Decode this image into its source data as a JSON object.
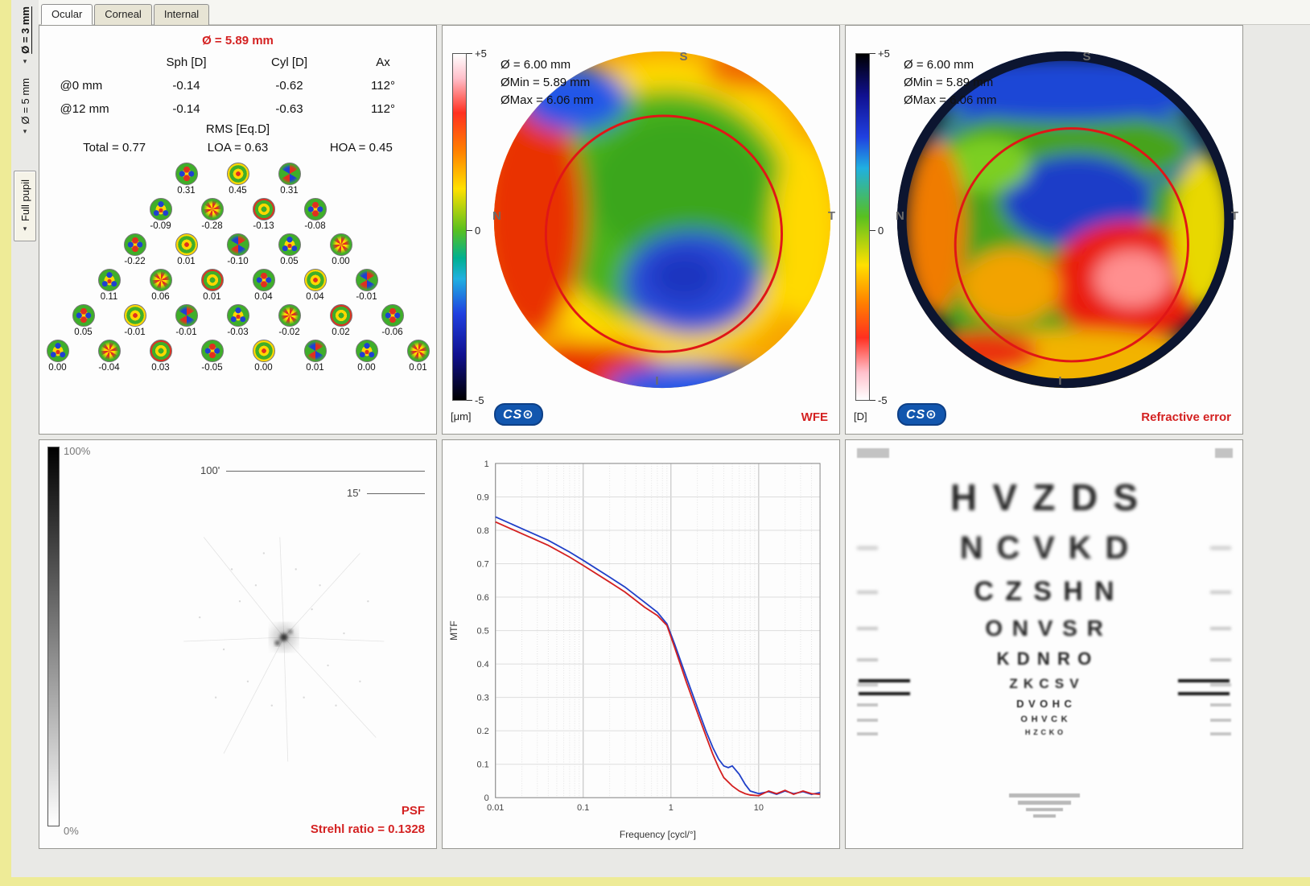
{
  "window": {
    "tabs": [
      {
        "label": "Ocular"
      },
      {
        "label": "Corneal"
      },
      {
        "label": "Internal"
      }
    ],
    "active_tab": "Ocular"
  },
  "sidebar": {
    "items": [
      {
        "label": "Ø = 3 mm",
        "active": true
      },
      {
        "label": "Ø = 5 mm",
        "active": false
      },
      {
        "label": "Full pupil",
        "active": false
      }
    ]
  },
  "icons": {
    "dropdown_arrow": "▾"
  },
  "zernike": {
    "title": "Ø = 5.89 mm",
    "col_headers": [
      "Sph [D]",
      "Cyl [D]",
      "Ax"
    ],
    "rows": [
      {
        "label": "@0 mm",
        "sph": "-0.14",
        "cyl": "-0.62",
        "ax": "112°"
      },
      {
        "label": "@12 mm",
        "sph": "-0.14",
        "cyl": "-0.63",
        "ax": "112°"
      }
    ],
    "rms_title": "RMS [Eq.D]",
    "rms_total": "Total = 0.77",
    "rms_loa": "LOA = 0.63",
    "rms_hoa": "HOA = 0.45",
    "pyramid": [
      [
        "0.31",
        "0.45",
        "0.31"
      ],
      [
        "-0.09",
        "-0.28",
        "-0.13",
        "-0.08"
      ],
      [
        "-0.22",
        "0.01",
        "-0.10",
        "0.05",
        "0.00"
      ],
      [
        "0.11",
        "0.06",
        "0.01",
        "0.04",
        "0.04",
        "-0.01"
      ],
      [
        "0.05",
        "-0.01",
        "-0.01",
        "-0.03",
        "-0.02",
        "0.02",
        "-0.06"
      ],
      [
        "0.00",
        "-0.04",
        "0.03",
        "-0.05",
        "0.00",
        "0.01",
        "0.00",
        "0.01"
      ]
    ]
  },
  "wfe": {
    "scale": {
      "top": "+5",
      "mid": "0",
      "bottom": "-5",
      "unit": "[μm]"
    },
    "info": {
      "diameter": "Ø = 6.00 mm",
      "min": "ØMin = 5.89 mm",
      "max": "ØMax = 6.06 mm"
    },
    "orientation": {
      "top": "S",
      "left": "N",
      "right": "T",
      "bottom": "I"
    },
    "logo": "CS⊙",
    "label": "WFE"
  },
  "refractive": {
    "scale": {
      "top": "+5",
      "mid": "0",
      "bottom": "-5",
      "unit": "[D]"
    },
    "info": {
      "diameter": "Ø = 6.00 mm",
      "min": "ØMin = 5.89 mm",
      "max": "ØMax = 6.06 mm"
    },
    "orientation": {
      "top": "S",
      "left": "N",
      "right": "T",
      "bottom": "I"
    },
    "logo": "CS⊙",
    "label": "Refractive error"
  },
  "psf": {
    "scale_top": "100%",
    "scale_bottom": "0%",
    "ruler_100": "100'",
    "ruler_15": "15'",
    "label": "PSF",
    "strehl": "Strehl ratio = 0.1328"
  },
  "mtf": {
    "chart_data": {
      "type": "line",
      "title": "",
      "xlabel": "Frequency [cycl/°]",
      "ylabel": "MTF",
      "xscale": "log",
      "xlim": [
        0.01,
        50
      ],
      "ylim": [
        0,
        1
      ],
      "xticks": [
        0.01,
        0.1,
        1,
        10
      ],
      "yticks": [
        0,
        0.1,
        0.2,
        0.3,
        0.4,
        0.5,
        0.6,
        0.7,
        0.8,
        0.9,
        1
      ],
      "grid": true,
      "legend": false,
      "series": [
        {
          "name": "MTF (blue)",
          "color": "#2040c8",
          "points": [
            [
              0.01,
              0.84
            ],
            [
              0.02,
              0.805
            ],
            [
              0.04,
              0.77
            ],
            [
              0.07,
              0.735
            ],
            [
              0.1,
              0.71
            ],
            [
              0.2,
              0.66
            ],
            [
              0.3,
              0.63
            ],
            [
              0.5,
              0.585
            ],
            [
              0.7,
              0.555
            ],
            [
              0.9,
              0.52
            ],
            [
              1.1,
              0.46
            ],
            [
              1.5,
              0.36
            ],
            [
              2,
              0.27
            ],
            [
              2.5,
              0.2
            ],
            [
              3,
              0.15
            ],
            [
              3.5,
              0.115
            ],
            [
              4,
              0.095
            ],
            [
              4.5,
              0.09
            ],
            [
              5,
              0.095
            ],
            [
              6,
              0.07
            ],
            [
              7,
              0.04
            ],
            [
              8,
              0.02
            ],
            [
              10,
              0.012
            ],
            [
              13,
              0.018
            ],
            [
              16,
              0.01
            ],
            [
              20,
              0.02
            ],
            [
              25,
              0.012
            ],
            [
              32,
              0.018
            ],
            [
              40,
              0.01
            ],
            [
              50,
              0.015
            ]
          ]
        },
        {
          "name": "MTF (red)",
          "color": "#d42020",
          "points": [
            [
              0.01,
              0.825
            ],
            [
              0.02,
              0.79
            ],
            [
              0.04,
              0.755
            ],
            [
              0.07,
              0.72
            ],
            [
              0.1,
              0.695
            ],
            [
              0.2,
              0.645
            ],
            [
              0.3,
              0.615
            ],
            [
              0.5,
              0.57
            ],
            [
              0.7,
              0.545
            ],
            [
              0.9,
              0.515
            ],
            [
              1.1,
              0.45
            ],
            [
              1.5,
              0.345
            ],
            [
              2,
              0.255
            ],
            [
              2.5,
              0.185
            ],
            [
              3,
              0.13
            ],
            [
              3.5,
              0.09
            ],
            [
              4,
              0.06
            ],
            [
              5,
              0.035
            ],
            [
              6,
              0.02
            ],
            [
              7,
              0.012
            ],
            [
              8,
              0.008
            ],
            [
              10,
              0.006
            ],
            [
              13,
              0.02
            ],
            [
              16,
              0.012
            ],
            [
              20,
              0.022
            ],
            [
              25,
              0.01
            ],
            [
              32,
              0.02
            ],
            [
              40,
              0.012
            ],
            [
              50,
              0.01
            ]
          ]
        }
      ]
    }
  },
  "eyechart": {
    "rows": [
      "HVZDS",
      "NCVKD",
      "CZSHN",
      "ONVSR",
      "KDNRO",
      "ZKCSV",
      "DVOHC",
      "OHVCK",
      "HZCKO"
    ]
  },
  "colors": {
    "accent_red": "#d42222",
    "logo_blue": "#1256ae",
    "background_yellow": "#eeeb97"
  }
}
